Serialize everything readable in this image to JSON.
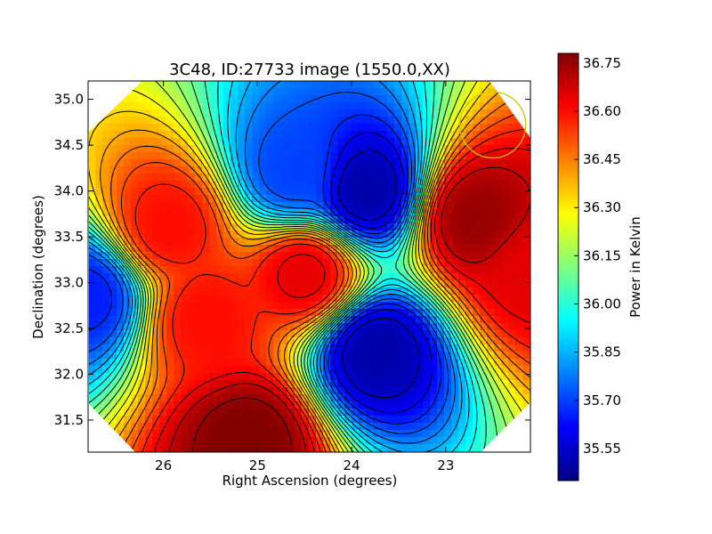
{
  "chart_data": {
    "type": "heatmap",
    "title": "3C48, ID:27733 image (1550.0,XX)",
    "xlabel": "Right Ascension (degrees)",
    "ylabel": "Declination (degrees)",
    "xlim": [
      26.8,
      22.1
    ],
    "ylim": [
      31.15,
      35.2
    ],
    "x_ticks": [
      26,
      25,
      24,
      23
    ],
    "y_ticks": [
      31.5,
      32.0,
      32.5,
      33.0,
      33.5,
      34.0,
      34.5,
      35.0
    ],
    "colorbar": {
      "label": "Power in Kelvin",
      "min": 35.45,
      "max": 36.78,
      "ticks": [
        36.75,
        36.6,
        36.45,
        36.3,
        36.15,
        36.0,
        35.85,
        35.7,
        35.55
      ],
      "colormap": "jet"
    },
    "features": [
      {
        "ra": 25.1,
        "dec": 31.3,
        "value": 36.78
      },
      {
        "ra": 22.7,
        "dec": 33.7,
        "value": 36.75
      },
      {
        "ra": 22.1,
        "dec": 33.15,
        "value": 36.65
      },
      {
        "ra": 24.5,
        "dec": 33.1,
        "value": 36.65
      },
      {
        "ra": 25.55,
        "dec": 32.6,
        "value": 36.6
      },
      {
        "ra": 25.95,
        "dec": 33.6,
        "value": 36.6
      },
      {
        "ra": 23.75,
        "dec": 32.25,
        "value": 35.5
      },
      {
        "ra": 23.85,
        "dec": 34.0,
        "value": 35.5
      },
      {
        "ra": 26.8,
        "dec": 32.85,
        "value": 35.65
      },
      {
        "ra": 24.6,
        "dec": 34.2,
        "value": 35.7
      }
    ],
    "circle": {
      "ra": 22.5,
      "dec": 34.72,
      "radius_deg": 0.35,
      "color": "#c8c800"
    },
    "grid": false
  }
}
